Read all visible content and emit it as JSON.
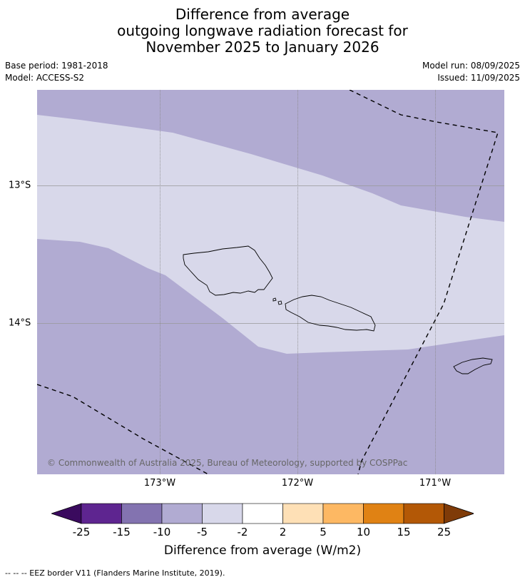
{
  "title": {
    "line1": "Difference from average",
    "line2": "outgoing longwave radiation forecast for",
    "line3": "November 2025 to January 2026"
  },
  "meta": {
    "base_period": "Base period: 1981-2018",
    "model": "Model: ACCESS-S2",
    "model_run": "Model run: 08/09/2025",
    "issued": "Issued: 11/09/2025"
  },
  "map": {
    "lon_labels": [
      "173°W",
      "172°W",
      "171°W"
    ],
    "lat_labels": [
      "13°S",
      "14°S"
    ],
    "copyright": "© Commonwealth of Australia 2025, Bureau of Meteorology, supported by COSPPac",
    "colors": {
      "near_zero": "#d8d8ea",
      "negative_5_10": "#b1abd2"
    }
  },
  "colorbar": {
    "label": "Difference from average (W/m2)",
    "ticks": [
      "-25",
      "-15",
      "-10",
      "-5",
      "-2",
      "2",
      "5",
      "10",
      "15",
      "25"
    ],
    "colors": [
      "#5e2590",
      "#8373b0",
      "#b1abd2",
      "#d8d8ea",
      "#ffffff",
      "#fee0b6",
      "#fdb863",
      "#e08214",
      "#b35806"
    ],
    "under_color": "#3a0a5e",
    "over_color": "#7f3b08"
  },
  "footnote": "--  --  -- EEZ border V11 (Flanders Marine Institute, 2019)."
}
